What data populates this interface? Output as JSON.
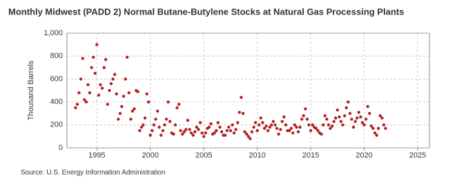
{
  "chart_data": {
    "type": "scatter",
    "title": "Monthly Midwest (PADD 2) Normal Butane-Butylene Stocks at Natural Gas Processing Plants",
    "y_label": "Thousand Barrels",
    "source": "Source: U.S. Energy Information Administration",
    "color": "#b22222",
    "grid": true,
    "xlim": [
      1992.2,
      2026.1
    ],
    "xticks": [
      1995,
      2000,
      2005,
      2010,
      2015,
      2020,
      2025
    ],
    "ylim": [
      0,
      1000
    ],
    "yticks": [
      0,
      200,
      400,
      600,
      800,
      {
        "value": 1000,
        "label": "1,000"
      }
    ],
    "series": [
      {
        "name": "Stocks",
        "x": [
          1993,
          1993.17,
          1993.33,
          1993.5,
          1993.67,
          1993.83,
          1994,
          1994.17,
          1994.33,
          1994.5,
          1994.67,
          1994.83,
          1995,
          1995.17,
          1995.33,
          1995.5,
          1995.67,
          1995.83,
          1996,
          1996.17,
          1996.33,
          1996.5,
          1996.67,
          1996.83,
          1997,
          1997.17,
          1997.33,
          1997.5,
          1997.67,
          1997.83,
          1998,
          1998.17,
          1998.33,
          1998.5,
          1998.67,
          1998.83,
          1999,
          1999.17,
          1999.33,
          1999.5,
          1999.67,
          1999.83,
          2000,
          2000.17,
          2000.33,
          2000.5,
          2000.67,
          2000.83,
          2001,
          2001.17,
          2001.33,
          2001.5,
          2001.67,
          2001.83,
          2002,
          2002.17,
          2002.33,
          2002.5,
          2002.67,
          2002.83,
          2003,
          2003.17,
          2003.33,
          2003.5,
          2003.67,
          2003.83,
          2004,
          2004.17,
          2004.33,
          2004.5,
          2004.67,
          2004.83,
          2005,
          2005.17,
          2005.33,
          2005.5,
          2005.67,
          2005.83,
          2006,
          2006.17,
          2006.33,
          2006.5,
          2006.67,
          2006.83,
          2007,
          2007.17,
          2007.33,
          2007.5,
          2007.67,
          2007.83,
          2008,
          2008.17,
          2008.33,
          2008.5,
          2008.67,
          2008.83,
          2009,
          2009.17,
          2009.33,
          2009.5,
          2009.67,
          2009.83,
          2010,
          2010.17,
          2010.33,
          2010.5,
          2010.67,
          2010.83,
          2011,
          2011.17,
          2011.33,
          2011.5,
          2011.67,
          2011.83,
          2012,
          2012.17,
          2012.33,
          2012.5,
          2012.67,
          2012.83,
          2013,
          2013.17,
          2013.33,
          2013.5,
          2013.67,
          2013.83,
          2014,
          2014.17,
          2014.33,
          2014.5,
          2014.67,
          2014.83,
          2015,
          2015.17,
          2015.33,
          2015.5,
          2015.67,
          2015.83,
          2016,
          2016.17,
          2016.33,
          2016.5,
          2016.67,
          2016.83,
          2017,
          2017.17,
          2017.33,
          2017.5,
          2017.67,
          2017.83,
          2018,
          2018.17,
          2018.33,
          2018.5,
          2018.67,
          2018.83,
          2019,
          2019.17,
          2019.33,
          2019.5,
          2019.67,
          2019.83,
          2020,
          2020.17,
          2020.33,
          2020.5,
          2020.67,
          2020.83,
          2021,
          2021.17,
          2021.33,
          2021.5,
          2021.67,
          2021.83,
          2022
        ],
        "values": [
          350,
          380,
          480,
          600,
          780,
          420,
          400,
          550,
          480,
          700,
          790,
          650,
          900,
          460,
          550,
          520,
          700,
          770,
          380,
          500,
          560,
          600,
          640,
          470,
          250,
          300,
          360,
          450,
          600,
          790,
          480,
          250,
          320,
          340,
          500,
          490,
          150,
          180,
          200,
          260,
          470,
          400,
          110,
          150,
          200,
          250,
          320,
          180,
          110,
          150,
          200,
          250,
          400,
          230,
          130,
          120,
          200,
          350,
          380,
          150,
          120,
          140,
          160,
          240,
          160,
          130,
          110,
          140,
          180,
          160,
          220,
          130,
          100,
          130,
          170,
          180,
          210,
          120,
          130,
          150,
          220,
          180,
          140,
          110,
          110,
          150,
          180,
          150,
          200,
          130,
          160,
          220,
          310,
          440,
          300,
          140,
          120,
          100,
          80,
          140,
          180,
          220,
          150,
          200,
          260,
          220,
          170,
          190,
          150,
          180,
          200,
          230,
          200,
          170,
          120,
          160,
          230,
          270,
          200,
          150,
          150,
          170,
          130,
          200,
          180,
          140,
          180,
          250,
          280,
          340,
          250,
          200,
          150,
          200,
          180,
          170,
          150,
          130,
          120,
          200,
          280,
          250,
          200,
          170,
          190,
          230,
          260,
          330,
          270,
          230,
          200,
          280,
          350,
          400,
          300,
          250,
          180,
          230,
          260,
          310,
          270,
          220,
          200,
          250,
          360,
          300,
          190,
          170,
          130,
          110,
          170,
          280,
          260,
          200,
          170
        ]
      }
    ]
  }
}
